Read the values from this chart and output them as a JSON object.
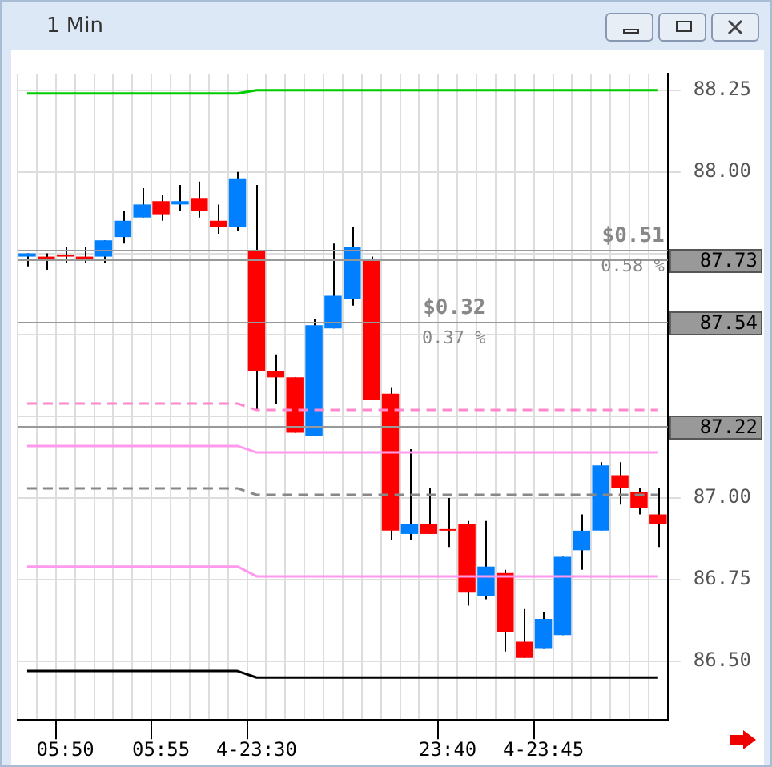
{
  "chart_data": {
    "type": "candlestick",
    "title": "1 Min",
    "categories": [
      null,
      null,
      "05:50",
      null,
      null,
      null,
      null,
      "05:55",
      null,
      null,
      null,
      null,
      "4-23:30",
      null,
      null,
      null,
      null,
      null,
      null,
      null,
      null,
      null,
      "23:40",
      null,
      null,
      null,
      null,
      "4-23:45",
      null,
      null,
      null,
      null,
      null,
      null
    ],
    "ohlc": [
      [
        87.74,
        87.75,
        87.71,
        87.75
      ],
      [
        87.74,
        87.75,
        87.7,
        87.73
      ],
      [
        87.74,
        87.77,
        87.72,
        87.74
      ],
      [
        87.74,
        87.77,
        87.72,
        87.73
      ],
      [
        87.74,
        87.79,
        87.72,
        87.79
      ],
      [
        87.8,
        87.88,
        87.78,
        87.85
      ],
      [
        87.86,
        87.95,
        87.86,
        87.9
      ],
      [
        87.91,
        87.93,
        87.85,
        87.87
      ],
      [
        87.9,
        87.96,
        87.88,
        87.91
      ],
      [
        87.92,
        87.97,
        87.86,
        87.88
      ],
      [
        87.85,
        87.9,
        87.81,
        87.83
      ],
      [
        87.83,
        88.0,
        87.82,
        87.98
      ],
      [
        87.76,
        87.96,
        87.27,
        87.39
      ],
      [
        87.39,
        87.44,
        87.29,
        87.37
      ],
      [
        87.37,
        87.37,
        87.2,
        87.2
      ],
      [
        87.19,
        87.55,
        87.19,
        87.53
      ],
      [
        87.52,
        87.78,
        87.52,
        87.62
      ],
      [
        87.61,
        87.83,
        87.59,
        87.77
      ],
      [
        87.73,
        87.74,
        87.3,
        87.3
      ],
      [
        87.32,
        87.34,
        86.87,
        86.9
      ],
      [
        86.89,
        87.15,
        86.87,
        86.92
      ],
      [
        86.92,
        87.03,
        86.89,
        86.89
      ],
      [
        86.9,
        87.0,
        86.85,
        86.9
      ],
      [
        86.92,
        86.93,
        86.67,
        86.71
      ],
      [
        86.7,
        86.93,
        86.69,
        86.79
      ],
      [
        86.77,
        86.78,
        86.53,
        86.59
      ],
      [
        86.56,
        86.66,
        86.51,
        86.51
      ],
      [
        86.54,
        86.65,
        86.54,
        86.63
      ],
      [
        86.58,
        86.82,
        86.58,
        86.82
      ],
      [
        86.84,
        86.95,
        86.78,
        86.9
      ],
      [
        86.9,
        87.11,
        86.9,
        87.1
      ],
      [
        87.07,
        87.11,
        86.98,
        87.03
      ],
      [
        87.02,
        87.03,
        86.95,
        86.97
      ],
      [
        86.95,
        87.03,
        86.85,
        86.92
      ]
    ],
    "colors": [
      "#0080ff",
      "#ff0000",
      "#ff0000",
      "#ff0000",
      "#0080ff",
      "#0080ff",
      "#0080ff",
      "#ff0000",
      "#0080ff",
      "#ff0000",
      "#ff0000",
      "#0080ff",
      "#ff0000",
      "#ff0000",
      "#ff0000",
      "#0080ff",
      "#0080ff",
      "#0080ff",
      "#ff0000",
      "#ff0000",
      "#0080ff",
      "#ff0000",
      "#ff0000",
      "#ff0000",
      "#0080ff",
      "#ff0000",
      "#ff0000",
      "#0080ff",
      "#0080ff",
      "#0080ff",
      "#0080ff",
      "#ff0000",
      "#ff0000",
      "#ff0000"
    ],
    "series": [
      {
        "type": "line",
        "color": "#00cc00",
        "line_style": "solid",
        "values": [
          88.24,
          88.24,
          88.24,
          88.24,
          88.24,
          88.24,
          88.24,
          88.24,
          88.24,
          88.24,
          88.24,
          88.24,
          88.25,
          88.25,
          88.25,
          88.25,
          88.25,
          88.25,
          88.25,
          88.25,
          88.25,
          88.25,
          88.25,
          88.25,
          88.25,
          88.25,
          88.25,
          88.25,
          88.25,
          88.25,
          88.25,
          88.25,
          88.25,
          88.25
        ]
      },
      {
        "type": "line",
        "color": "#ff88cc",
        "line_style": "dashed",
        "values": [
          87.29,
          87.29,
          87.29,
          87.29,
          87.29,
          87.29,
          87.29,
          87.29,
          87.29,
          87.29,
          87.29,
          87.29,
          87.27,
          87.27,
          87.27,
          87.27,
          87.27,
          87.27,
          87.27,
          87.27,
          87.27,
          87.27,
          87.27,
          87.27,
          87.27,
          87.27,
          87.27,
          87.27,
          87.27,
          87.27,
          87.27,
          87.27,
          87.27,
          87.27
        ]
      },
      {
        "type": "line",
        "color": "#ff99ee",
        "line_style": "solid",
        "values": [
          87.16,
          87.16,
          87.16,
          87.16,
          87.16,
          87.16,
          87.16,
          87.16,
          87.16,
          87.16,
          87.16,
          87.16,
          87.14,
          87.14,
          87.14,
          87.14,
          87.14,
          87.14,
          87.14,
          87.14,
          87.14,
          87.14,
          87.14,
          87.14,
          87.14,
          87.14,
          87.14,
          87.14,
          87.14,
          87.14,
          87.14,
          87.14,
          87.14,
          87.14
        ]
      },
      {
        "type": "line",
        "color": "#888888",
        "line_style": "dashed",
        "values": [
          87.03,
          87.03,
          87.03,
          87.03,
          87.03,
          87.03,
          87.03,
          87.03,
          87.03,
          87.03,
          87.03,
          87.03,
          87.01,
          87.01,
          87.01,
          87.01,
          87.01,
          87.01,
          87.01,
          87.01,
          87.01,
          87.01,
          87.01,
          87.01,
          87.01,
          87.01,
          87.01,
          87.01,
          87.01,
          87.01,
          87.01,
          87.01,
          87.01,
          87.01
        ]
      },
      {
        "type": "line",
        "color": "#ff99ee",
        "line_style": "solid",
        "values": [
          86.79,
          86.79,
          86.79,
          86.79,
          86.79,
          86.79,
          86.79,
          86.79,
          86.79,
          86.79,
          86.79,
          86.79,
          86.76,
          86.76,
          86.76,
          86.76,
          86.76,
          86.76,
          86.76,
          86.76,
          86.76,
          86.76,
          86.76,
          86.76,
          86.76,
          86.76,
          86.76,
          86.76,
          86.76,
          86.76,
          86.76,
          86.76,
          86.76,
          86.76
        ]
      },
      {
        "type": "line",
        "color": "#000000",
        "line_style": "solid",
        "values": [
          86.47,
          86.47,
          86.47,
          86.47,
          86.47,
          86.47,
          86.47,
          86.47,
          86.47,
          86.47,
          86.47,
          86.47,
          86.45,
          86.45,
          86.45,
          86.45,
          86.45,
          86.45,
          86.45,
          86.45,
          86.45,
          86.45,
          86.45,
          86.45,
          86.45,
          86.45,
          86.45,
          86.45,
          86.45,
          86.45,
          86.45,
          86.45,
          86.45,
          86.45
        ]
      }
    ],
    "ylim": [
      86.32,
      88.3
    ],
    "yticks": [
      {
        "value": 86.5,
        "label": "86.50"
      },
      86.75,
      {
        "value": 87,
        "label": "87.00"
      },
      {
        "value": 87.25,
        "label": null
      },
      {
        "value": 87.5,
        "label": null
      },
      {
        "value": 87.75,
        "label": null
      },
      {
        "value": 88,
        "label": "88.00"
      },
      88.25
    ],
    "ref_lines": [
      {
        "axis": "y",
        "value": 87.76,
        "color": "#999999"
      },
      {
        "axis": "y",
        "value": 87.73,
        "label": "87.73",
        "color": "#999999"
      },
      {
        "axis": "y",
        "value": 87.54,
        "label": "87.54",
        "color": "#999999"
      },
      {
        "axis": "y",
        "value": 87.22,
        "label": "87.22",
        "color": "#999999"
      }
    ],
    "annotations": [
      "$0.51",
      "0.58 %",
      "$0.32",
      "0.37 %"
    ],
    "grid": true,
    "legend": false
  }
}
